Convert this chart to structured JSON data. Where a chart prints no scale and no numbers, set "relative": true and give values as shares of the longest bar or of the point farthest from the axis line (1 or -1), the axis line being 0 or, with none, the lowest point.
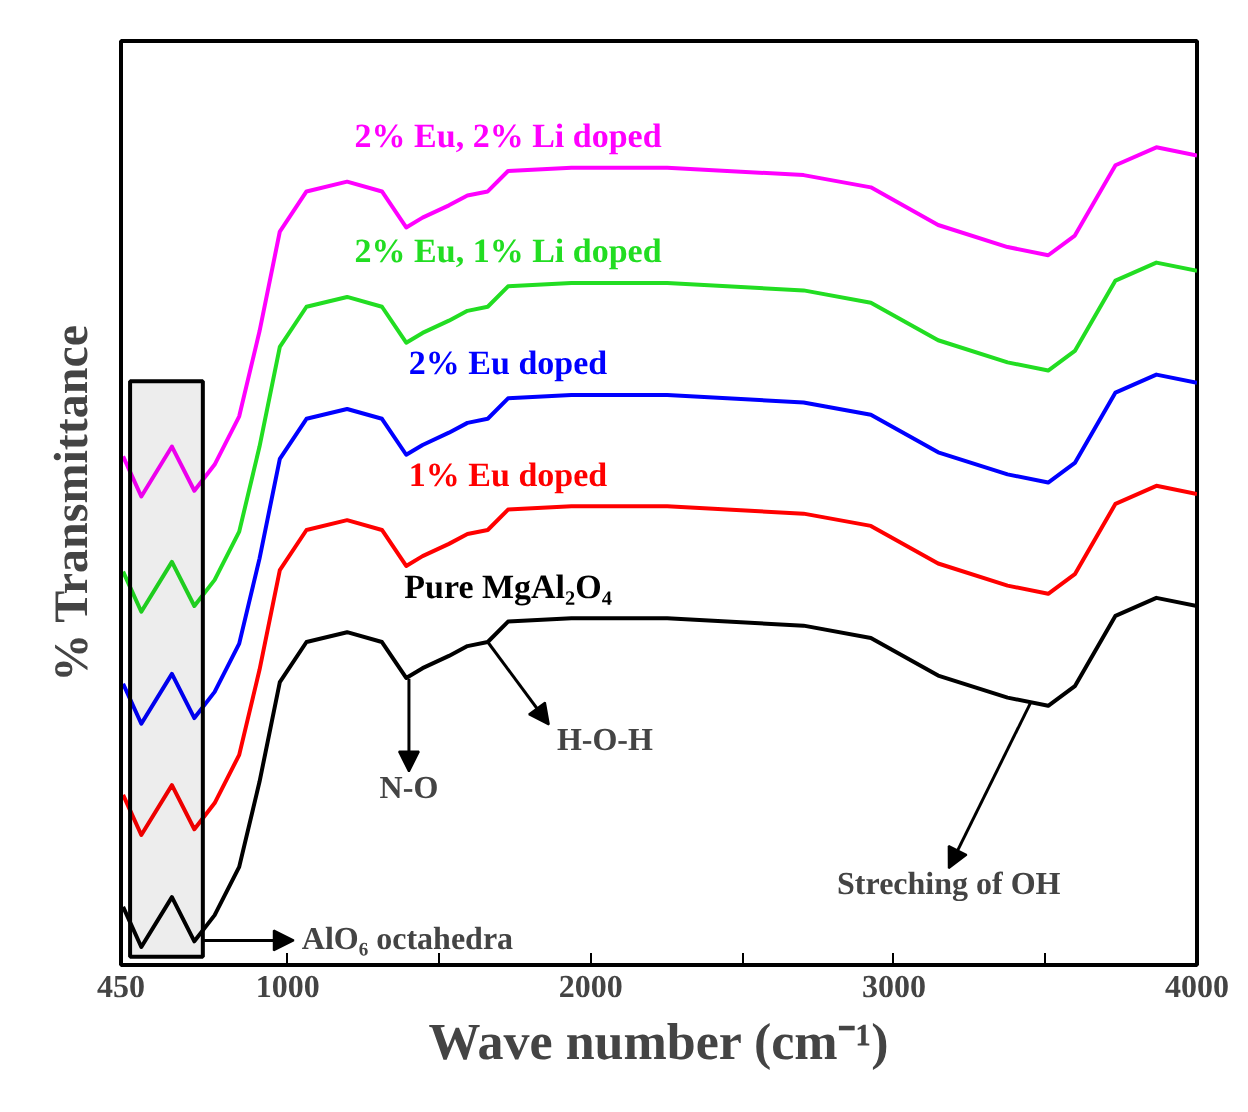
{
  "chart_data": {
    "type": "line",
    "relative": true,
    "xlabel": "Wave number (cm⁻¹)",
    "ylabel": "% Transmittance",
    "x": [
      457,
      517,
      618,
      692,
      759,
      840,
      907,
      974,
      1062,
      1196,
      1311,
      1391,
      1445,
      1532,
      1593,
      1660,
      1727,
      1936,
      2252,
      2702,
      2924,
      3146,
      3375,
      3509,
      3597,
      3731,
      3866,
      4000
    ],
    "xlim": [
      450,
      4000
    ],
    "xticks": [
      450,
      1000,
      {
        "value": 1500,
        "label": null
      },
      2000,
      {
        "value": 2500,
        "label": null
      },
      3000,
      {
        "value": 3500,
        "label": null
      },
      4000
    ],
    "tick_labels": "x",
    "grid": false,
    "series": [
      {
        "name": "Pure MgAl₂O₄",
        "color": "#000000",
        "values": [
          0.071,
          0.022,
          0.083,
          0.029,
          0.061,
          0.12,
          0.224,
          0.346,
          0.395,
          0.407,
          0.395,
          0.351,
          0.363,
          0.378,
          0.39,
          0.395,
          0.42,
          0.424,
          0.424,
          0.415,
          0.4,
          0.354,
          0.327,
          0.317,
          0.341,
          0.427,
          0.449,
          0.439
        ]
      },
      {
        "name": "1% Eu doped",
        "color": "#ff0000",
        "values": [
          0.208,
          0.159,
          0.22,
          0.166,
          0.198,
          0.257,
          0.361,
          0.483,
          0.532,
          0.544,
          0.532,
          0.488,
          0.5,
          0.515,
          0.527,
          0.532,
          0.557,
          0.561,
          0.561,
          0.552,
          0.537,
          0.491,
          0.464,
          0.454,
          0.478,
          0.564,
          0.586,
          0.576
        ]
      },
      {
        "name": "2% Eu doped",
        "color": "#0000ff",
        "values": [
          0.344,
          0.295,
          0.356,
          0.302,
          0.334,
          0.393,
          0.497,
          0.619,
          0.668,
          0.68,
          0.668,
          0.624,
          0.636,
          0.651,
          0.663,
          0.668,
          0.693,
          0.697,
          0.697,
          0.688,
          0.673,
          0.627,
          0.6,
          0.59,
          0.614,
          0.7,
          0.722,
          0.712
        ]
      },
      {
        "name": "2% Eu, 1% Li doped",
        "color": "#22dd22",
        "values": [
          0.481,
          0.432,
          0.493,
          0.439,
          0.471,
          0.53,
          0.634,
          0.756,
          0.805,
          0.817,
          0.805,
          0.761,
          0.773,
          0.788,
          0.8,
          0.805,
          0.83,
          0.834,
          0.834,
          0.825,
          0.81,
          0.764,
          0.737,
          0.727,
          0.751,
          0.837,
          0.859,
          0.849
        ]
      },
      {
        "name": "2% Eu, 2% Li doped",
        "color": "#ff00ff",
        "values": [
          0.622,
          0.573,
          0.634,
          0.58,
          0.612,
          0.671,
          0.775,
          0.897,
          0.946,
          0.958,
          0.946,
          0.902,
          0.914,
          0.929,
          0.941,
          0.946,
          0.971,
          0.975,
          0.975,
          0.966,
          0.951,
          0.905,
          0.878,
          0.868,
          0.892,
          0.978,
          1.0,
          0.99
        ]
      }
    ],
    "annotations": [
      {
        "text": "N-O",
        "x": 1400,
        "y": 0.35
      },
      {
        "text": "H-O-H",
        "x": 1660,
        "y": 0.395
      },
      {
        "text": "Streching of OH",
        "x": 3450,
        "y": 0.32
      }
    ],
    "bands": [
      {
        "axis": "x",
        "from": 480,
        "to": 720,
        "label": "AlO₆ octahedra",
        "color": "#000000"
      }
    ]
  }
}
